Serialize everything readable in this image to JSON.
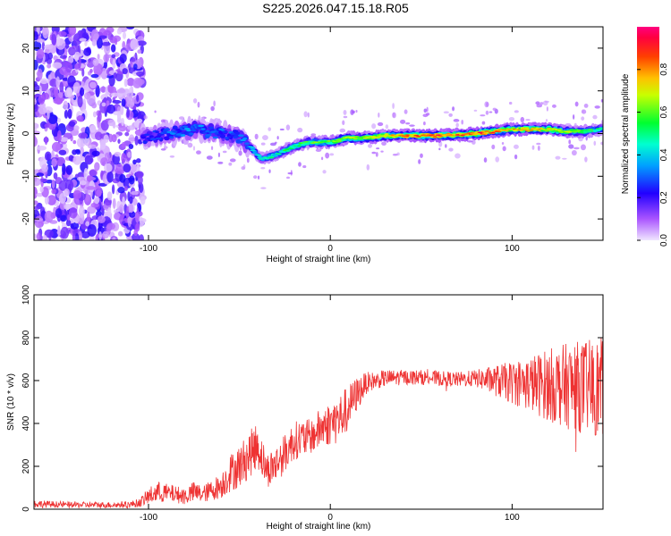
{
  "title": "S225.2026.047.15.18.R05",
  "chart_data": [
    {
      "type": "heatmap",
      "title": "S225.2026.047.15.18.R05",
      "xlabel": "Height of straight line (km)",
      "ylabel": "Frequency (Hz)",
      "xlim": [
        -163,
        150
      ],
      "ylim": [
        -25,
        25
      ],
      "xticks": [
        -100,
        0,
        100
      ],
      "yticks": [
        -20,
        -10,
        0,
        10,
        20
      ],
      "colorbar": {
        "label": "Normalized spectral amplitude",
        "range": [
          0,
          1
        ],
        "ticks": [
          0.0,
          0.2,
          0.4,
          0.6,
          0.8
        ],
        "colormap": [
          "#f0e6ff",
          "#8800ff",
          "#2200ff",
          "#00e0ff",
          "#00ff40",
          "#ffff00",
          "#ff8000",
          "#ff0000",
          "#ff0080"
        ]
      },
      "noise_region_km": [
        -163,
        -103
      ],
      "signal_trace": {
        "x": [
          -103,
          -90,
          -75,
          -60,
          -50,
          -42,
          -38,
          -30,
          -20,
          -12,
          -5,
          0,
          10,
          20,
          30,
          40,
          50,
          60,
          70,
          80,
          90,
          100,
          110,
          120,
          130,
          140,
          150
        ],
        "freq": [
          -1,
          0,
          1,
          0,
          -1,
          -4,
          -6,
          -5,
          -3,
          -2,
          -2,
          -2,
          -1,
          -1,
          -0.5,
          -0.5,
          -0.5,
          -0.5,
          -0.3,
          0,
          0.5,
          1,
          1,
          1,
          0.5,
          0.5,
          1
        ],
        "amplitude": [
          0.25,
          0.3,
          0.35,
          0.3,
          0.3,
          0.4,
          0.45,
          0.5,
          0.55,
          0.6,
          0.6,
          0.65,
          0.7,
          0.7,
          0.75,
          0.8,
          0.85,
          0.9,
          0.85,
          0.9,
          0.85,
          0.8,
          0.8,
          0.75,
          0.7,
          0.6,
          0.5
        ]
      }
    },
    {
      "type": "line",
      "xlabel": "Height of straight line (km)",
      "ylabel": "SNR (10 * v/v)",
      "xlim": [
        -163,
        150
      ],
      "ylim": [
        0,
        1000
      ],
      "xticks": [
        -100,
        0,
        100
      ],
      "yticks": [
        0,
        200,
        400,
        600,
        800,
        1000
      ],
      "color": "#ee3333",
      "series": [
        {
          "name": "SNR",
          "x": [
            -163,
            -150,
            -140,
            -130,
            -120,
            -110,
            -105,
            -100,
            -95,
            -90,
            -85,
            -80,
            -75,
            -70,
            -65,
            -60,
            -55,
            -50,
            -45,
            -40,
            -35,
            -30,
            -25,
            -20,
            -15,
            -10,
            -5,
            0,
            5,
            10,
            15,
            20,
            25,
            30,
            40,
            50,
            60,
            70,
            80,
            90,
            100,
            110,
            120,
            130,
            140,
            150
          ],
          "y": [
            25,
            22,
            20,
            20,
            20,
            22,
            30,
            60,
            80,
            75,
            70,
            60,
            80,
            70,
            90,
            110,
            170,
            200,
            250,
            300,
            180,
            210,
            260,
            320,
            330,
            340,
            380,
            400,
            420,
            480,
            540,
            590,
            600,
            610,
            615,
            615,
            610,
            605,
            610,
            600,
            590,
            585,
            580,
            575,
            570,
            560
          ],
          "spread": [
            18,
            15,
            14,
            14,
            14,
            16,
            20,
            40,
            50,
            45,
            40,
            40,
            50,
            40,
            50,
            60,
            90,
            100,
            110,
            110,
            80,
            90,
            90,
            90,
            90,
            80,
            100,
            100,
            120,
            100,
            80,
            50,
            40,
            40,
            35,
            35,
            35,
            35,
            40,
            70,
            100,
            130,
            170,
            200,
            220,
            240
          ]
        }
      ]
    }
  ]
}
